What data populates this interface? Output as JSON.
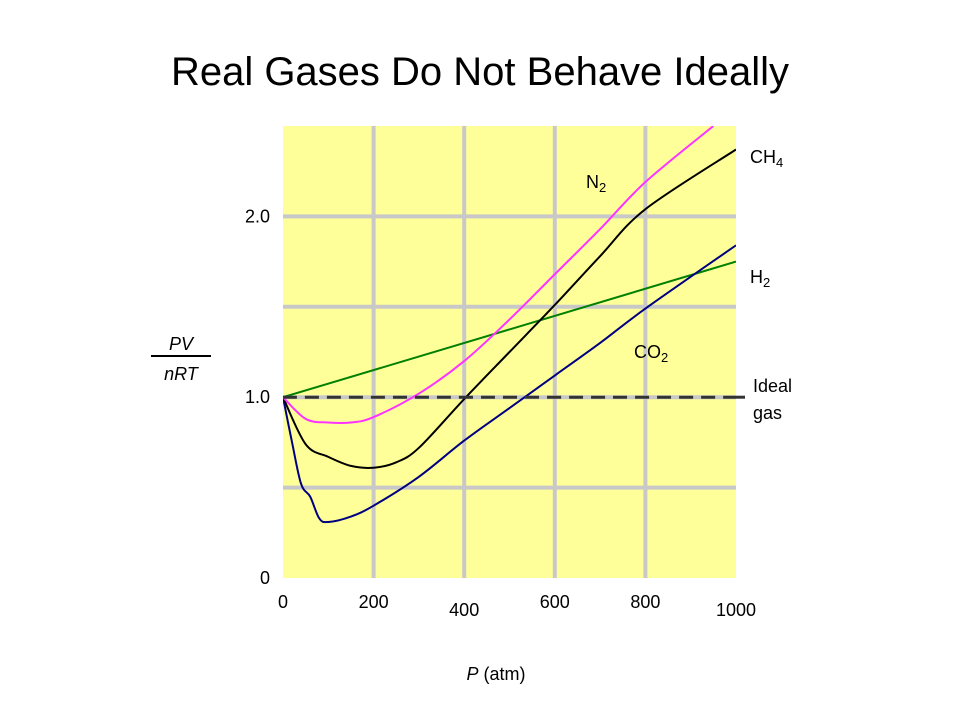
{
  "chart_data": {
    "type": "line",
    "title": "Real Gases Do Not Behave Ideally",
    "xlabel": {
      "var": "P",
      "unit": " (atm)"
    },
    "ylabel": {
      "numerator": "PV",
      "denominator": "nRT"
    },
    "xlim": [
      0,
      1000
    ],
    "ylim": [
      0,
      2.5
    ],
    "x_ticks": [
      "0",
      "200",
      "400",
      "600",
      "800",
      "1000"
    ],
    "y_ticks": [
      "0",
      "1.0",
      "2.0"
    ],
    "grid": true,
    "legend": "direct labels",
    "colors": {
      "background": "#FFFF99",
      "grid": "#C8C8C8"
    },
    "series": [
      {
        "name": "N2",
        "formula": {
          "base": "N",
          "sub": "2"
        },
        "color": "#FF33FF",
        "x": [
          0,
          50,
          100,
          150,
          200,
          300,
          400,
          500,
          600,
          700,
          800,
          950
        ],
        "y": [
          1.0,
          0.88,
          0.86,
          0.86,
          0.89,
          1.02,
          1.2,
          1.43,
          1.68,
          1.93,
          2.19,
          2.5
        ]
      },
      {
        "name": "CH4",
        "formula": {
          "base": "CH",
          "sub": "4"
        },
        "color": "#000000",
        "x": [
          0,
          50,
          100,
          150,
          200,
          250,
          300,
          400,
          500,
          600,
          700,
          800,
          1000
        ],
        "y": [
          1.0,
          0.74,
          0.67,
          0.62,
          0.61,
          0.64,
          0.72,
          0.99,
          1.25,
          1.51,
          1.78,
          2.04,
          2.37
        ]
      },
      {
        "name": "H2",
        "formula": {
          "base": "H",
          "sub": "2"
        },
        "color": "#008000",
        "x": [
          0,
          1000
        ],
        "y": [
          1.0,
          1.75
        ]
      },
      {
        "name": "CO2",
        "formula": {
          "base": "CO",
          "sub": "2"
        },
        "color": "#000080",
        "x": [
          0,
          20,
          40,
          60,
          80,
          100,
          150,
          200,
          300,
          400,
          500,
          600,
          700,
          800,
          1000
        ],
        "y": [
          1.0,
          0.75,
          0.52,
          0.45,
          0.33,
          0.31,
          0.34,
          0.4,
          0.56,
          0.76,
          0.94,
          1.12,
          1.3,
          1.49,
          1.84
        ]
      },
      {
        "name": "Ideal gas",
        "label_lines": [
          "Ideal",
          "gas"
        ],
        "color": "#333333",
        "dashed": true,
        "x": [
          0,
          1000
        ],
        "y": [
          1.0,
          1.0
        ]
      }
    ]
  }
}
